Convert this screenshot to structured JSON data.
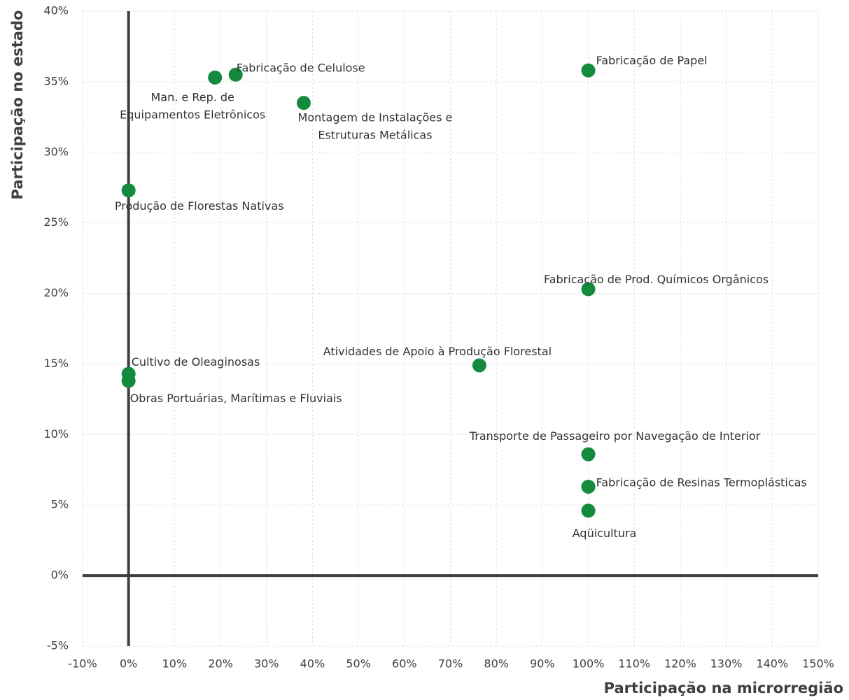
{
  "chart_data": {
    "type": "scatter",
    "xlabel": "Participação na microrregião",
    "ylabel": "Participação no estado",
    "color": "#138a3e",
    "grid": true,
    "xlim": [
      -10,
      150
    ],
    "ylim": [
      -5,
      40
    ],
    "xticks": [
      {
        "value": -10,
        "label": "-10%"
      },
      {
        "value": 0,
        "label": "0%"
      },
      {
        "value": 10,
        "label": "10%"
      },
      {
        "value": 20,
        "label": "20%"
      },
      {
        "value": 30,
        "label": "30%"
      },
      {
        "value": 40,
        "label": "40%"
      },
      {
        "value": 50,
        "label": "50%"
      },
      {
        "value": 60,
        "label": "60%"
      },
      {
        "value": 70,
        "label": "70%"
      },
      {
        "value": 80,
        "label": "80%"
      },
      {
        "value": 90,
        "label": "90%"
      },
      {
        "value": 100,
        "label": "100%"
      },
      {
        "value": 110,
        "label": "110%"
      },
      {
        "value": 120,
        "label": "120%"
      },
      {
        "value": 130,
        "label": "130%"
      },
      {
        "value": 140,
        "label": "140%"
      },
      {
        "value": 150,
        "label": "150%"
      }
    ],
    "yticks": [
      {
        "value": -5,
        "label": "-5%"
      },
      {
        "value": 0,
        "label": "0%"
      },
      {
        "value": 5,
        "label": "5%"
      },
      {
        "value": 10,
        "label": "10%"
      },
      {
        "value": 15,
        "label": "15%"
      },
      {
        "value": 20,
        "label": "20%"
      },
      {
        "value": 25,
        "label": "25%"
      },
      {
        "value": 30,
        "label": "30%"
      },
      {
        "value": 35,
        "label": "35%"
      },
      {
        "value": 40,
        "label": "40%"
      }
    ],
    "labels": [
      [
        "Man. e Rep. de",
        "Equipamentos Eletrônicos"
      ],
      [
        "Fabricação de Celulose"
      ],
      [
        "Montagem de Instalações e",
        "Estruturas Metálicas"
      ],
      [
        "Fabricação de Papel"
      ],
      [
        "Produção de Florestas Nativas"
      ],
      [
        "Fabricação de Prod. Químicos Orgânicos"
      ],
      [
        "Atividades de Apoio à Produção Florestal"
      ],
      [
        "Cultivo de Oleaginosas"
      ],
      [
        "Obras Portuárias, Marítimas e Fluviais"
      ],
      [
        "Transporte de Passageiro por Navegação de Interior"
      ],
      [
        "Fabricação de Resinas Termoplásticas"
      ],
      [
        "Aqüicultura"
      ]
    ],
    "x": [
      18.8,
      23.3,
      38.1,
      100,
      0,
      100,
      76.3,
      0,
      0,
      100,
      100,
      100
    ],
    "values": [
      35.3,
      35.5,
      33.5,
      35.8,
      27.3,
      20.3,
      14.9,
      14.3,
      13.8,
      8.6,
      6.3,
      4.6
    ]
  }
}
